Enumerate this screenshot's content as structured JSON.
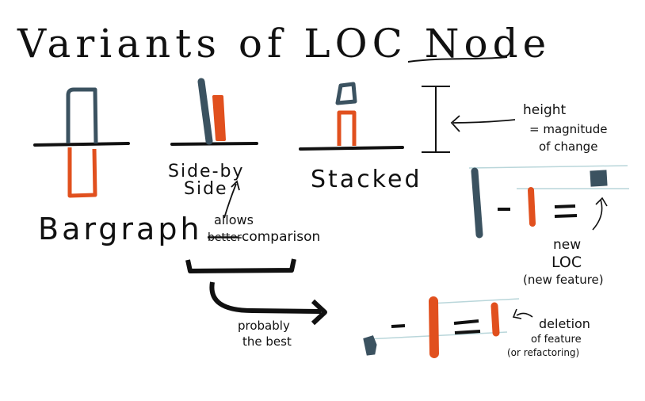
{
  "title": "Variants of LOC Node",
  "colors": {
    "ink": "#111111",
    "slate": "#3b5260",
    "orange": "#e1501e",
    "guide": "#b9d6da"
  },
  "variants": {
    "bargraph": "Bargraph",
    "side_by_side_line1": "Side-by",
    "side_by_side_line2": "Side",
    "stacked": "Stacked"
  },
  "notes": {
    "allows_line1": "allows",
    "allows_line2_struck": "better",
    "allows_line2_rest": "comparison",
    "probably_line1": "probably",
    "probably_line2": "the best",
    "height_line1": "height",
    "height_line2": "= magnitude",
    "height_line3": "of change",
    "new_line1": "new",
    "new_line2": "LOC",
    "new_line3": "(new feature)",
    "deletion_line1": "deletion",
    "deletion_line2": "of feature",
    "deletion_line3": "(or refactoring)"
  }
}
